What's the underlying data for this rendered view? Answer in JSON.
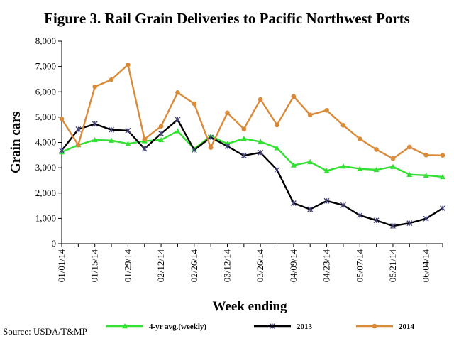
{
  "chart_data": {
    "type": "line",
    "title": "Figure 3. Rail Grain Deliveries to Pacific Northwest Ports",
    "xlabel": "Week ending",
    "ylabel": "Grain cars",
    "ylim": [
      0,
      8000
    ],
    "ytick_labels": [
      "0",
      "1,000",
      "2,000",
      "3,000",
      "4,000",
      "5,000",
      "6,000",
      "7,000",
      "8,000"
    ],
    "yticks": [
      0,
      1000,
      2000,
      3000,
      4000,
      5000,
      6000,
      7000,
      8000
    ],
    "x": [
      "01/01/14",
      "01/08/14",
      "01/15/14",
      "01/22/14",
      "01/29/14",
      "02/05/14",
      "02/12/14",
      "02/19/14",
      "02/26/14",
      "03/05/14",
      "03/12/14",
      "03/19/14",
      "03/26/14",
      "04/02/14",
      "04/09/14",
      "04/16/14",
      "04/23/14",
      "04/30/14",
      "05/07/14",
      "05/14/14",
      "05/21/14",
      "05/28/14",
      "06/04/14",
      "06/11/14"
    ],
    "xtick_labels": [
      "01/01/14",
      "01/15/14",
      "01/29/14",
      "02/12/14",
      "02/26/14",
      "03/12/14",
      "03/26/14",
      "04/09/14",
      "04/23/14",
      "05/07/14",
      "05/21/14",
      "06/04/14"
    ],
    "grid": false,
    "legend_position": "bottom",
    "series": [
      {
        "name": "4-yr avg.(weekly)",
        "color": "#33e033",
        "marker": "triangle",
        "values": [
          3620,
          3900,
          4100,
          4080,
          3950,
          4060,
          4100,
          4450,
          3750,
          4250,
          3950,
          4150,
          4030,
          3780,
          3100,
          3230,
          2880,
          3060,
          2960,
          2920,
          3040,
          2730,
          2700,
          2640
        ]
      },
      {
        "name": "2013",
        "color": "#000000",
        "marker": "x",
        "values": [
          3680,
          4520,
          4730,
          4500,
          4470,
          3750,
          4350,
          4900,
          3700,
          4200,
          3850,
          3480,
          3600,
          2920,
          1600,
          1360,
          1690,
          1520,
          1120,
          920,
          700,
          810,
          990,
          1400
        ]
      },
      {
        "name": "2014",
        "color": "#d98b3a",
        "marker": "circle",
        "values": [
          4930,
          3900,
          6200,
          6480,
          7070,
          4130,
          4640,
          5970,
          5530,
          3800,
          5170,
          4530,
          5700,
          4690,
          5820,
          5090,
          5270,
          4680,
          4140,
          3720,
          3360,
          3820,
          3500,
          3490
        ]
      }
    ],
    "source": "Source: USDA/T&MP"
  }
}
